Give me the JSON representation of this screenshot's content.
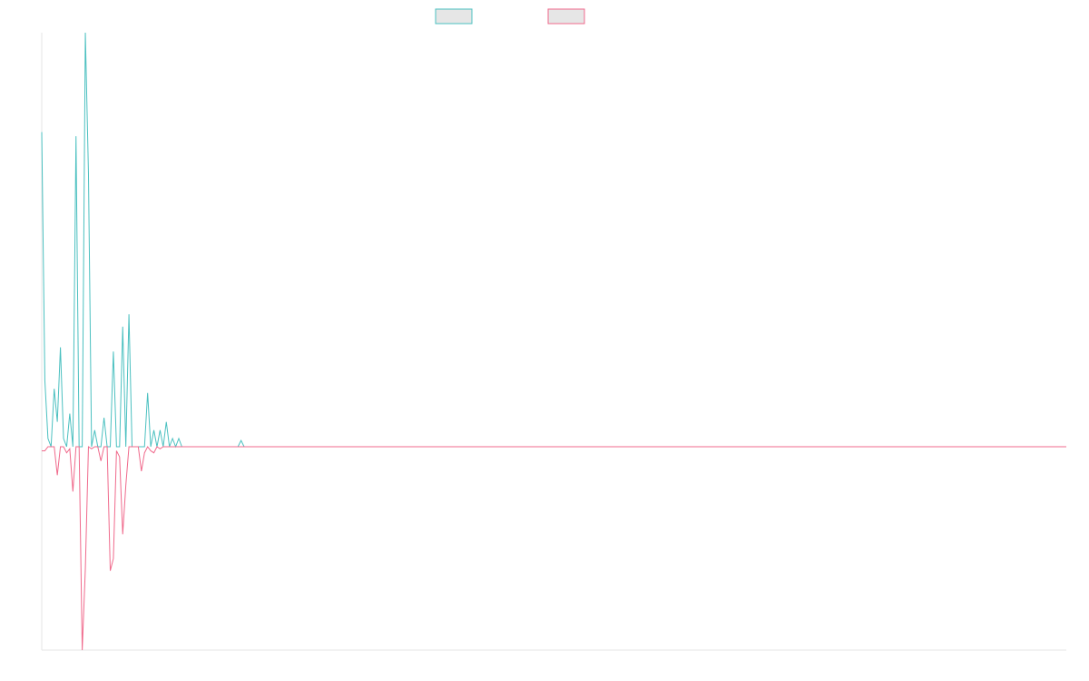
{
  "chart_data": {
    "type": "line",
    "title": "",
    "xlabel": "",
    "ylabel": "",
    "x_range": [
      0,
      329
    ],
    "ylim": [
      -1.0,
      1.0
    ],
    "grid": false,
    "legend": "top-center",
    "series": [
      {
        "name": "",
        "color": "#4bc0c0",
        "points": [
          [
            0,
            0.76
          ],
          [
            1,
            0.16
          ],
          [
            2,
            0.02
          ],
          [
            3,
            0.0
          ],
          [
            4,
            0.14
          ],
          [
            5,
            0.06
          ],
          [
            6,
            0.24
          ],
          [
            7,
            0.02
          ],
          [
            8,
            0.0
          ],
          [
            9,
            0.08
          ],
          [
            10,
            0.0
          ],
          [
            11,
            0.75
          ],
          [
            12,
            0.0
          ],
          [
            13,
            0.0
          ],
          [
            14,
            1.0
          ],
          [
            15,
            0.66
          ],
          [
            16,
            0.0
          ],
          [
            17,
            0.04
          ],
          [
            18,
            0.0
          ],
          [
            19,
            0.0
          ],
          [
            20,
            0.07
          ],
          [
            21,
            0.0
          ],
          [
            22,
            0.0
          ],
          [
            23,
            0.23
          ],
          [
            24,
            0.0
          ],
          [
            25,
            0.0
          ],
          [
            26,
            0.29
          ],
          [
            27,
            0.0
          ],
          [
            28,
            0.32
          ],
          [
            29,
            0.0
          ],
          [
            30,
            0.0
          ],
          [
            31,
            0.0
          ],
          [
            32,
            0.0
          ],
          [
            33,
            0.0
          ],
          [
            34,
            0.13
          ],
          [
            35,
            0.0
          ],
          [
            36,
            0.04
          ],
          [
            37,
            0.0
          ],
          [
            38,
            0.04
          ],
          [
            39,
            0.0
          ],
          [
            40,
            0.06
          ],
          [
            41,
            0.0
          ],
          [
            42,
            0.02
          ],
          [
            43,
            0.0
          ],
          [
            44,
            0.02
          ],
          [
            45,
            0.0
          ],
          [
            46,
            0.0
          ],
          [
            47,
            0.0
          ],
          [
            48,
            0.0
          ],
          [
            49,
            0.0
          ],
          [
            50,
            0.0
          ],
          [
            51,
            0.0
          ],
          [
            52,
            0.0
          ],
          [
            53,
            0.0
          ],
          [
            54,
            0.0
          ],
          [
            55,
            0.0
          ],
          [
            56,
            0.0
          ],
          [
            57,
            0.0
          ],
          [
            58,
            0.0
          ],
          [
            59,
            0.0
          ],
          [
            60,
            0.0
          ],
          [
            61,
            0.0
          ],
          [
            62,
            0.0
          ],
          [
            63,
            0.0
          ],
          [
            64,
            0.015
          ],
          [
            65,
            0.0
          ],
          [
            66,
            0.0
          ],
          [
            80,
            0.0
          ],
          [
            100,
            0.0
          ],
          [
            150,
            0.0
          ],
          [
            200,
            0.0
          ],
          [
            250,
            0.0
          ],
          [
            300,
            0.0
          ],
          [
            329,
            0.0
          ]
        ]
      },
      {
        "name": "",
        "color": "#f06a8c",
        "points": [
          [
            0,
            -0.02
          ],
          [
            1,
            -0.02
          ],
          [
            2,
            0.0
          ],
          [
            3,
            0.0
          ],
          [
            4,
            0.0
          ],
          [
            5,
            -0.14
          ],
          [
            6,
            0.0
          ],
          [
            7,
            0.0
          ],
          [
            8,
            -0.03
          ],
          [
            9,
            -0.01
          ],
          [
            10,
            -0.22
          ],
          [
            11,
            0.0
          ],
          [
            12,
            0.0
          ],
          [
            13,
            -1.0
          ],
          [
            14,
            -0.6
          ],
          [
            15,
            0.0
          ],
          [
            16,
            -0.01
          ],
          [
            17,
            0.0
          ],
          [
            18,
            0.0
          ],
          [
            19,
            -0.07
          ],
          [
            20,
            0.0
          ],
          [
            21,
            0.0
          ],
          [
            22,
            -0.61
          ],
          [
            23,
            -0.55
          ],
          [
            24,
            -0.02
          ],
          [
            25,
            -0.05
          ],
          [
            26,
            -0.43
          ],
          [
            27,
            -0.19
          ],
          [
            28,
            0.0
          ],
          [
            29,
            0.0
          ],
          [
            30,
            0.0
          ],
          [
            31,
            0.0
          ],
          [
            32,
            -0.12
          ],
          [
            33,
            -0.03
          ],
          [
            34,
            0.0
          ],
          [
            35,
            -0.02
          ],
          [
            36,
            -0.03
          ],
          [
            37,
            0.0
          ],
          [
            38,
            -0.01
          ],
          [
            39,
            0.0
          ],
          [
            40,
            0.0
          ],
          [
            45,
            0.0
          ],
          [
            50,
            0.0
          ],
          [
            100,
            0.0
          ],
          [
            150,
            0.0
          ],
          [
            200,
            0.0
          ],
          [
            250,
            0.0
          ],
          [
            300,
            0.0
          ],
          [
            329,
            0.0
          ]
        ]
      }
    ]
  }
}
